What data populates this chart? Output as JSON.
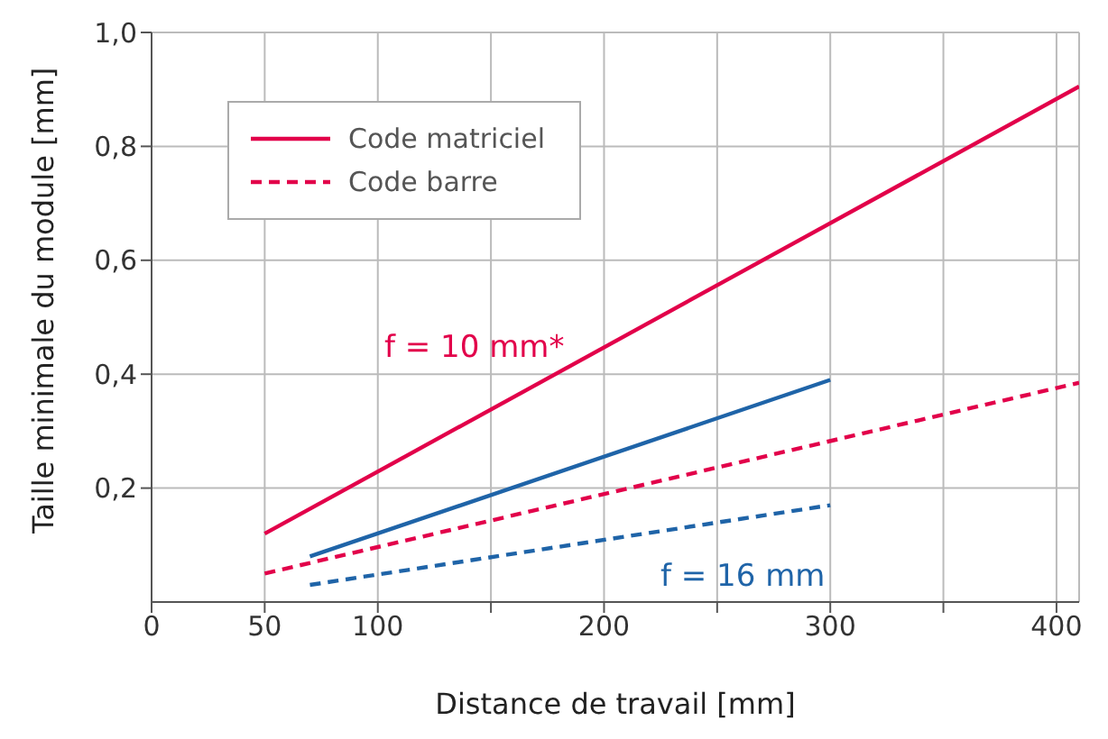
{
  "chart_data": {
    "type": "line",
    "xlabel": "Distance de travail [mm]",
    "ylabel": "Taille minimale du module [mm]",
    "xlim": [
      0,
      410
    ],
    "ylim": [
      0,
      1
    ],
    "xticks": [
      0,
      50,
      100,
      {
        "value": 150,
        "label": null
      },
      200,
      {
        "value": 250,
        "label": null
      },
      300,
      {
        "value": 350,
        "label": null
      },
      400
    ],
    "yticks": [
      {
        "value": 0.2,
        "label": "0,2"
      },
      {
        "value": 0.4,
        "label": "0,4"
      },
      {
        "value": 0.6,
        "label": "0,6"
      },
      {
        "value": 0.8,
        "label": "0,8"
      },
      {
        "value": 1.0,
        "label": "1,0"
      }
    ],
    "grid": true,
    "legend": "top left",
    "marker": "none",
    "series": [
      {
        "name": "Code matriciel",
        "color": "#e2004a",
        "line_style": "solid",
        "x": [
          50,
          410
        ],
        "values": [
          0.12,
          0.905
        ]
      },
      {
        "color": "#1f64a8",
        "line_style": "solid",
        "x": [
          70,
          300
        ],
        "values": [
          0.08,
          0.39
        ]
      },
      {
        "name": "Code barre",
        "color": "#e2004a",
        "line_style": "dashed",
        "x": [
          50,
          410
        ],
        "values": [
          0.05,
          0.385
        ]
      },
      {
        "color": "#1f64a8",
        "line_style": "dashed",
        "x": [
          70,
          300
        ],
        "values": [
          0.03,
          0.17
        ]
      }
    ],
    "annotations": [
      "f = 10 mm*",
      "f = 16 mm"
    ]
  }
}
